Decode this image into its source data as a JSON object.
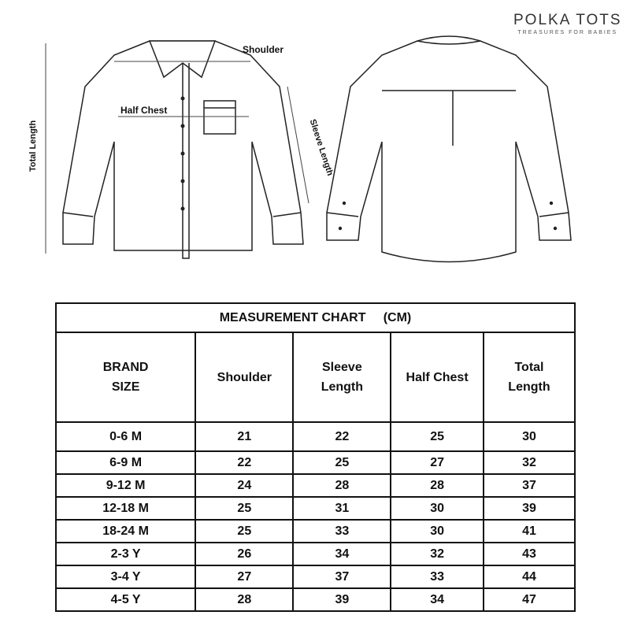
{
  "brand": {
    "name": "POLKA TOTS",
    "tagline": "TREASURES FOR BABIES"
  },
  "diagram_labels": {
    "shoulder": "Shoulder",
    "half_chest": "Half Chest",
    "total_length": "Total Length",
    "sleeve_length": "Sleeve Length"
  },
  "table": {
    "title": "MEASUREMENT CHART     (CM)",
    "headers": [
      [
        "BRAND",
        "SIZE"
      ],
      [
        "Shoulder"
      ],
      [
        "Sleeve",
        "Length"
      ],
      [
        "Half Chest"
      ],
      [
        "Total",
        "Length"
      ]
    ],
    "rows": [
      [
        "0-6 M",
        "21",
        "22",
        "25",
        "30"
      ],
      [
        "6-9 M",
        "22",
        "25",
        "27",
        "32"
      ],
      [
        "9-12 M",
        "24",
        "28",
        "28",
        "37"
      ],
      [
        "12-18 M",
        "25",
        "31",
        "30",
        "39"
      ],
      [
        "18-24 M",
        "25",
        "33",
        "30",
        "41"
      ],
      [
        "2-3 Y",
        "26",
        "34",
        "32",
        "43"
      ],
      [
        "3-4 Y",
        "27",
        "37",
        "33",
        "44"
      ],
      [
        "4-5 Y",
        "28",
        "39",
        "34",
        "47"
      ]
    ]
  }
}
